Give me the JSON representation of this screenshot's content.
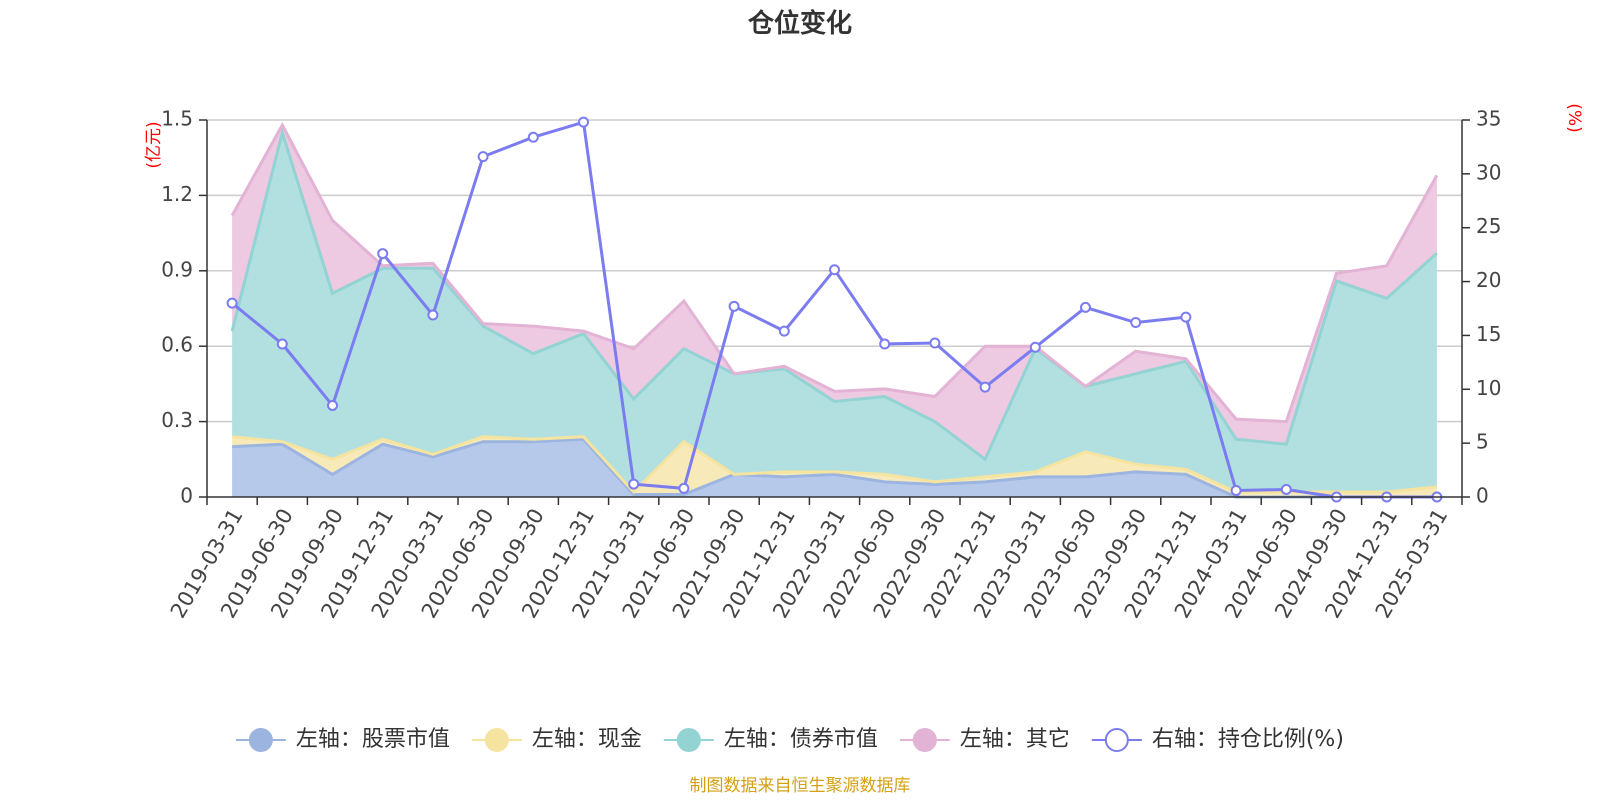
{
  "chart_data": {
    "type": "area",
    "title": "仓位变化",
    "source_note": "制图数据来自恒生聚源数据库",
    "left_axis": {
      "unit": "(亿元)",
      "ticks": [
        "0",
        "0.3",
        "0.6",
        "0.9",
        "1.2",
        "1.5"
      ],
      "ylim": [
        0,
        1.5
      ]
    },
    "right_axis": {
      "unit": "(%)",
      "ticks": [
        "0",
        "5",
        "10",
        "15",
        "20",
        "25",
        "30",
        "35"
      ],
      "ylim": [
        0,
        35
      ]
    },
    "categories": [
      "2019-03-31",
      "2019-06-30",
      "2019-09-30",
      "2019-12-31",
      "2020-03-31",
      "2020-06-30",
      "2020-09-30",
      "2020-12-31",
      "2021-03-31",
      "2021-06-30",
      "2021-09-30",
      "2021-12-31",
      "2022-03-31",
      "2022-06-30",
      "2022-09-30",
      "2022-12-31",
      "2023-03-31",
      "2023-06-30",
      "2023-09-30",
      "2023-12-31",
      "2024-03-31",
      "2024-06-30",
      "2024-09-30",
      "2024-12-31",
      "2025-03-31"
    ],
    "series": [
      {
        "name": "股票市值",
        "legend": "左轴：股票市值",
        "axis": "left",
        "stacked": true,
        "color": "#9bb5e0",
        "fill": "#b6c9ea",
        "values": [
          0.2,
          0.21,
          0.09,
          0.21,
          0.16,
          0.22,
          0.22,
          0.23,
          0.01,
          0.01,
          0.09,
          0.08,
          0.09,
          0.06,
          0.05,
          0.06,
          0.08,
          0.08,
          0.1,
          0.09,
          0.0,
          0.0,
          0.0,
          0.0,
          0.0
        ]
      },
      {
        "name": "现金",
        "legend": "左轴：现金",
        "axis": "left",
        "stacked": true,
        "color": "#f5e3a0",
        "fill": "#f8eab8",
        "values": [
          0.04,
          0.01,
          0.06,
          0.02,
          0.01,
          0.02,
          0.01,
          0.01,
          0.01,
          0.21,
          0.0,
          0.02,
          0.01,
          0.03,
          0.01,
          0.02,
          0.02,
          0.1,
          0.03,
          0.02,
          0.02,
          0.02,
          0.02,
          0.02,
          0.04
        ]
      },
      {
        "name": "债券市值",
        "legend": "左轴：债券市值",
        "axis": "left",
        "stacked": true,
        "color": "#93d3d3",
        "fill": "#b2e0e0",
        "values": [
          0.42,
          1.23,
          0.66,
          0.68,
          0.74,
          0.44,
          0.34,
          0.41,
          0.37,
          0.37,
          0.4,
          0.41,
          0.28,
          0.31,
          0.24,
          0.07,
          0.49,
          0.26,
          0.36,
          0.43,
          0.21,
          0.19,
          0.84,
          0.77,
          0.93
        ]
      },
      {
        "name": "其它",
        "legend": "左轴：其它",
        "axis": "left",
        "stacked": true,
        "color": "#e3b3d5",
        "fill": "#edc9e2",
        "values": [
          0.46,
          0.03,
          0.29,
          0.01,
          0.02,
          0.01,
          0.11,
          0.01,
          0.2,
          0.19,
          0.0,
          0.01,
          0.04,
          0.03,
          0.1,
          0.45,
          0.01,
          0.0,
          0.09,
          0.01,
          0.08,
          0.09,
          0.03,
          0.13,
          0.31
        ]
      },
      {
        "name": "持仓比例(%)",
        "legend": "右轴：持仓比例(%)",
        "axis": "right",
        "type": "line",
        "color": "#7b7cf0",
        "values": [
          18.0,
          14.2,
          8.5,
          22.6,
          16.9,
          31.6,
          33.4,
          34.8,
          1.2,
          0.8,
          17.7,
          15.4,
          21.1,
          14.2,
          14.3,
          10.2,
          13.9,
          17.6,
          16.2,
          16.7,
          0.6,
          0.7,
          0.0,
          0.0,
          0.0
        ]
      }
    ]
  }
}
